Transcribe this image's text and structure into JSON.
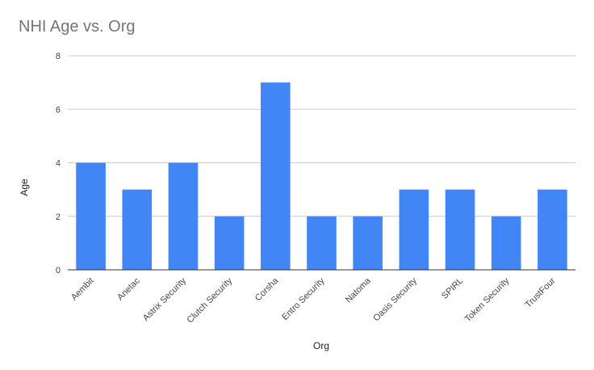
{
  "chart_data": {
    "type": "bar",
    "title": "NHI Age vs. Org",
    "xlabel": "Org",
    "ylabel": "Age",
    "categories": [
      "Aembit",
      "Anetac",
      "Astrix Security",
      "Clutch Security",
      "Corsha",
      "Entro Security",
      "Natoma",
      "Oasis Security",
      "SPIRL",
      "Token Security",
      "TrustFour"
    ],
    "values": [
      4,
      3,
      4,
      2,
      7,
      2,
      2,
      3,
      3,
      2,
      3
    ],
    "ylim": [
      0,
      8
    ],
    "yticks": [
      0,
      2,
      4,
      6,
      8
    ],
    "grid": true,
    "legend": "none",
    "bar_color": "#4285f4",
    "grid_color": "#cccccc",
    "axis_color": "#333333"
  }
}
